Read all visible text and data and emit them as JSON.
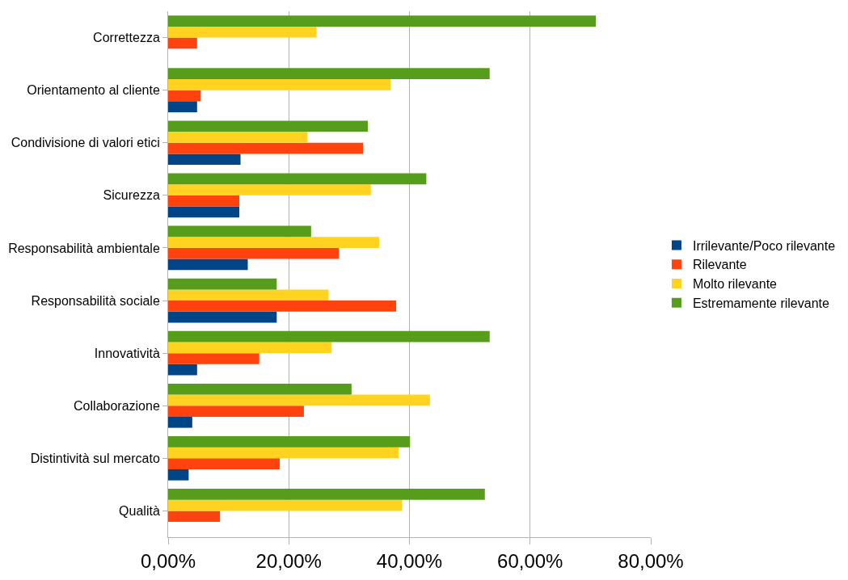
{
  "chart_data": {
    "type": "bar",
    "orientation": "horizontal",
    "categories": [
      "Correttezza",
      "Orientamento al cliente",
      "Condivisione di valori etici",
      "Sicurezza",
      "Responsabilità ambientale",
      "Responsabilità sociale",
      "Innovatività",
      "Collaborazione",
      "Distintività sul mercato",
      "Qualità"
    ],
    "series": [
      {
        "name": "Irrilevante/Poco rilevante",
        "color": "#004586",
        "values": [
          0,
          4.8,
          12.0,
          11.8,
          13.2,
          18.0,
          4.8,
          4.0,
          3.4,
          0
        ]
      },
      {
        "name": "Rilevante",
        "color": "#ff420e",
        "values": [
          4.8,
          5.4,
          32.3,
          11.8,
          28.3,
          37.8,
          15.1,
          22.5,
          18.5,
          8.6
        ]
      },
      {
        "name": "Molto rilevante",
        "color": "#ffd320",
        "values": [
          24.6,
          36.9,
          23.1,
          33.6,
          35.0,
          26.6,
          27.1,
          43.4,
          38.2,
          38.8
        ]
      },
      {
        "name": "Estremamente rilevante",
        "color": "#579d1c",
        "values": [
          70.9,
          53.3,
          33.1,
          42.8,
          23.7,
          18.0,
          53.3,
          30.4,
          40.1,
          52.5
        ]
      }
    ],
    "xlim": [
      0,
      80
    ],
    "xticks": [
      {
        "value": 0,
        "label": "0,00%"
      },
      {
        "value": 20,
        "label": "20,00%"
      },
      {
        "value": 40,
        "label": "40,00%"
      },
      {
        "value": 60,
        "label": "60,00%"
      },
      {
        "value": 80,
        "label": "80,00%"
      }
    ],
    "grid": "x",
    "legend": "right"
  }
}
